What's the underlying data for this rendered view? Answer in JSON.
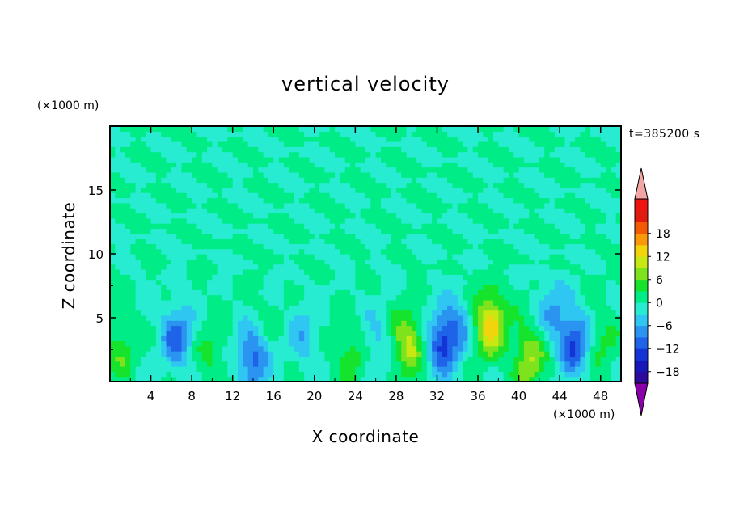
{
  "chart_data": {
    "type": "heatmap",
    "title": "vertical velocity",
    "xlabel": "X coordinate",
    "ylabel": "Z coordinate",
    "x_unit": "(×1000 m)",
    "y_unit": "(×1000 m)",
    "time_label": "t=385200 s",
    "xlim": [
      0,
      50
    ],
    "ylim": [
      0,
      20
    ],
    "x_ticks": [
      "4",
      "8",
      "12",
      "16",
      "20",
      "24",
      "28",
      "32",
      "36",
      "40",
      "44",
      "48"
    ],
    "y_ticks": [
      "5",
      "10",
      "15"
    ],
    "colorbar_ticks": [
      "18",
      "12",
      "6",
      "0",
      "−6",
      "−12",
      "−18"
    ],
    "colorbar": {
      "levels": [
        -21,
        -18,
        -15,
        -12,
        -9,
        -6,
        -3,
        0,
        3,
        6,
        9,
        12,
        15,
        18,
        21
      ],
      "colors": [
        "#2d0a9b",
        "#1818b8",
        "#1434d8",
        "#1f63e8",
        "#2b93f0",
        "#2fc6f2",
        "#27ecd2",
        "#00ec86",
        "#16e32c",
        "#7ee21c",
        "#c8e814",
        "#f2d40c",
        "#fa9808",
        "#f25a06",
        "#e01c10",
        "#ee1410"
      ],
      "under_color": "#8a00a8",
      "over_color": "#f2a5a5"
    },
    "field_description": "background near 0; updrafts and downdrafts below z=8",
    "features": [
      {
        "x": 37.2,
        "z": 4.6,
        "w": 14
      },
      {
        "x": 29.2,
        "z": 3.0,
        "w": 10
      },
      {
        "x": 41.0,
        "z": 1.9,
        "w": 9
      },
      {
        "x": 23.5,
        "z": 2.0,
        "w": 5
      },
      {
        "x": 10.0,
        "z": 2.3,
        "w": 4
      },
      {
        "x": 1.0,
        "z": 2.5,
        "w": 5
      },
      {
        "x": 48.0,
        "z": 3.0,
        "w": 4
      },
      {
        "x": 15.0,
        "z": 4.5,
        "w": 2
      },
      {
        "x": 6.5,
        "z": 3.5,
        "w": -10
      },
      {
        "x": 14.0,
        "z": 2.0,
        "w": -11
      },
      {
        "x": 32.5,
        "z": 3.0,
        "w": -12
      },
      {
        "x": 45.5,
        "z": 3.0,
        "w": -12
      },
      {
        "x": 34.0,
        "z": 4.5,
        "w": -6
      },
      {
        "x": 43.5,
        "z": 5.5,
        "w": -6
      },
      {
        "x": 19.0,
        "z": 3.5,
        "w": -5
      },
      {
        "x": 26.0,
        "z": 3.0,
        "w": -4
      }
    ]
  }
}
